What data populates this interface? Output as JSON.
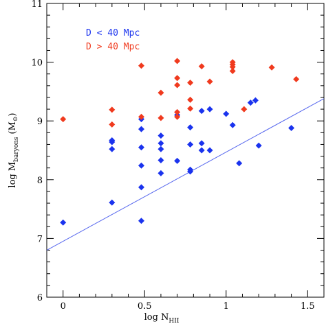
{
  "chart_data": {
    "type": "scatter",
    "xlabel": "log N",
    "xlabel_sub": "HII",
    "ylabel": "log M",
    "ylabel_sub": "baryons",
    "ylabel_unit": "(M",
    "ylabel_unit_sub": "⊙",
    "ylabel_unit_close": ")",
    "xlim": [
      -0.1,
      1.6
    ],
    "ylim": [
      6,
      11
    ],
    "xticks": [
      0,
      0.5,
      1,
      1.5
    ],
    "xtick_labels": [
      "0",
      "0.5",
      "1",
      "1.5"
    ],
    "yticks": [
      6,
      7,
      8,
      9,
      10,
      11
    ],
    "ytick_labels": [
      "6",
      "7",
      "8",
      "9",
      "10",
      "11"
    ],
    "legend_placement": "top-left",
    "series": [
      {
        "name": "D < 40 Mpc",
        "color": "#1a33ee",
        "marker": "diamond",
        "points": [
          [
            0.0,
            7.27
          ],
          [
            0.3,
            7.61
          ],
          [
            0.3,
            8.52
          ],
          [
            0.3,
            8.64
          ],
          [
            0.3,
            8.67
          ],
          [
            0.48,
            7.3
          ],
          [
            0.48,
            7.87
          ],
          [
            0.48,
            8.24
          ],
          [
            0.48,
            8.55
          ],
          [
            0.48,
            8.86
          ],
          [
            0.48,
            9.03
          ],
          [
            0.6,
            8.11
          ],
          [
            0.6,
            8.33
          ],
          [
            0.6,
            8.52
          ],
          [
            0.6,
            8.62
          ],
          [
            0.6,
            8.75
          ],
          [
            0.7,
            8.32
          ],
          [
            0.7,
            9.1
          ],
          [
            0.78,
            8.14
          ],
          [
            0.78,
            8.17
          ],
          [
            0.78,
            8.6
          ],
          [
            0.78,
            8.89
          ],
          [
            0.85,
            8.5
          ],
          [
            0.85,
            8.62
          ],
          [
            0.85,
            9.17
          ],
          [
            0.9,
            8.5
          ],
          [
            0.9,
            9.2
          ],
          [
            1.0,
            9.12
          ],
          [
            1.04,
            8.93
          ],
          [
            1.08,
            8.28
          ],
          [
            1.15,
            9.31
          ],
          [
            1.18,
            9.35
          ],
          [
            1.2,
            8.58
          ],
          [
            1.4,
            8.88
          ]
        ]
      },
      {
        "name": "D > 40 Mpc",
        "color": "#f03a1e",
        "marker": "diamond",
        "points": [
          [
            0.0,
            9.03
          ],
          [
            0.3,
            8.94
          ],
          [
            0.3,
            9.19
          ],
          [
            0.48,
            9.07
          ],
          [
            0.48,
            9.94
          ],
          [
            0.6,
            9.05
          ],
          [
            0.6,
            9.48
          ],
          [
            0.7,
            9.07
          ],
          [
            0.7,
            9.15
          ],
          [
            0.7,
            9.61
          ],
          [
            0.7,
            9.73
          ],
          [
            0.7,
            10.02
          ],
          [
            0.78,
            9.21
          ],
          [
            0.78,
            9.36
          ],
          [
            0.78,
            9.65
          ],
          [
            0.85,
            9.93
          ],
          [
            0.9,
            9.67
          ],
          [
            1.04,
            9.85
          ],
          [
            1.04,
            9.92
          ],
          [
            1.04,
            9.96
          ],
          [
            1.04,
            10.0
          ],
          [
            1.11,
            9.2
          ],
          [
            1.28,
            9.91
          ],
          [
            1.43,
            9.71
          ]
        ]
      }
    ],
    "fit_line": {
      "color": "#5566ee",
      "x": [
        -0.1,
        1.6
      ],
      "y": [
        6.8,
        9.38
      ]
    }
  }
}
